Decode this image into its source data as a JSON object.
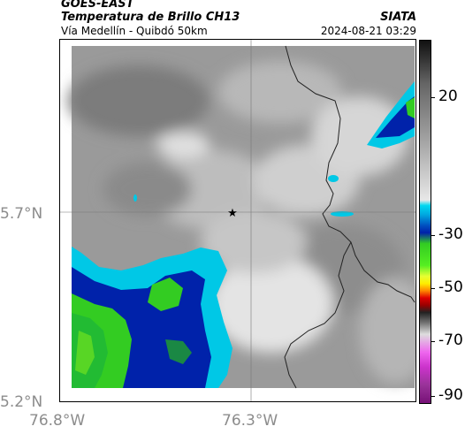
{
  "header": {
    "satellite": "GOES-EAST",
    "product": "Temperatura de Brillo CH13",
    "route": "Vía Medellín - Quibdó 50km",
    "source": "SIATA",
    "timestamp": "2024-08-21 03:29"
  },
  "axes": {
    "lat_labels": [
      "5.7°N",
      "5.2°N"
    ],
    "lon_labels": [
      "76.8°W",
      "76.3°W"
    ]
  },
  "colorbar": {
    "ticks": [
      "20",
      "-30",
      "-50",
      "-70",
      "-90"
    ]
  },
  "colors": {
    "clear": "#8f8f8f",
    "cyan": "#00c8e6",
    "blue": "#0022aa",
    "green": "#33cc22",
    "yellow": "#e6ff33"
  }
}
